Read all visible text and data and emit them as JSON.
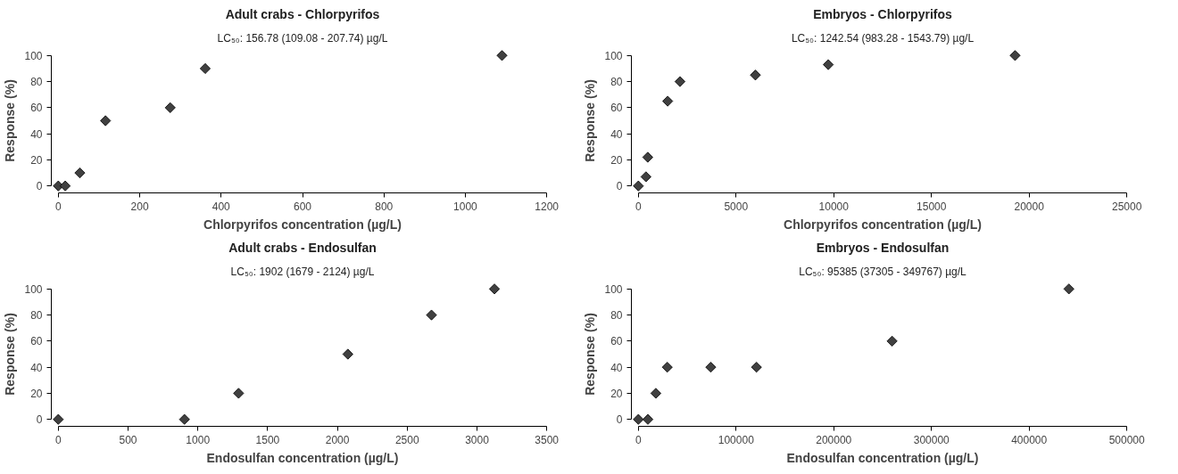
{
  "chart_data": [
    {
      "type": "scatter",
      "title": "Adult crabs - Chlorpyrifos",
      "subtitle": "LC₅₀: 156.78 (109.08 - 207.74) µg/L",
      "xlabel": "Chlorpyrifos concentration (µg/L)",
      "ylabel": "Response (%)",
      "marker": "diamond",
      "grid": false,
      "series": [
        {
          "color": "#404040",
          "x": [
            0,
            17,
            53,
            116,
            275,
            361,
            1090
          ],
          "values": [
            0,
            0,
            10,
            50,
            60,
            90,
            100
          ]
        }
      ],
      "xlim": [
        0,
        1200
      ],
      "xticks": [
        0,
        200,
        400,
        600,
        800,
        1000,
        1200
      ],
      "ylim": [
        0,
        100
      ],
      "yticks": [
        0,
        20,
        40,
        60,
        80,
        100
      ]
    },
    {
      "type": "scatter",
      "title": "Embryos - Chlorpyrifos",
      "subtitle": "LC₅₀: 1242.54 (983.28 - 1543.79) µg/L",
      "xlabel": "Chlorpyrifos concentration (µg/L)",
      "ylabel": "Response (%)",
      "marker": "diamond",
      "grid": false,
      "series": [
        {
          "color": "#404040",
          "x": [
            0,
            390,
            480,
            1500,
            2130,
            5990,
            9720,
            19280
          ],
          "values": [
            0,
            7,
            22,
            65,
            80,
            85,
            93,
            100
          ]
        }
      ],
      "xlim": [
        0,
        25000
      ],
      "xticks": [
        0,
        5000,
        10000,
        15000,
        20000,
        25000
      ],
      "ylim": [
        0,
        100
      ],
      "yticks": [
        0,
        20,
        40,
        60,
        80,
        100
      ]
    },
    {
      "type": "scatter",
      "title": "Adult crabs - Endosulfan",
      "subtitle": "LC₅₀: 1902 (1679 - 2124) µg/L",
      "xlabel": "Endosulfan concentration (µg/L)",
      "ylabel": "Response (%)",
      "marker": "diamond",
      "grid": false,
      "series": [
        {
          "color": "#404040",
          "x": [
            0,
            904,
            1292,
            2075,
            2674,
            3125
          ],
          "values": [
            0,
            0,
            20,
            50,
            80,
            100
          ]
        }
      ],
      "xlim": [
        0,
        3500
      ],
      "xticks": [
        0,
        500,
        1000,
        1500,
        2000,
        2500,
        3000,
        3500
      ],
      "ylim": [
        0,
        100
      ],
      "yticks": [
        0,
        20,
        40,
        60,
        80,
        100
      ]
    },
    {
      "type": "scatter",
      "title": "Embryos - Endosulfan",
      "subtitle": "LC₅₀: 95385 (37305 - 349767) µg/L",
      "xlabel": "Endosulfan concentration (µg/L)",
      "ylabel": "Response (%)",
      "marker": "diamond",
      "grid": false,
      "series": [
        {
          "color": "#404040",
          "x": [
            0,
            9750,
            17900,
            29600,
            74100,
            120900,
            259700,
            440700
          ],
          "values": [
            0,
            0,
            20,
            40,
            40,
            40,
            60,
            100
          ]
        }
      ],
      "xlim": [
        0,
        500000
      ],
      "xticks": [
        0,
        100000,
        200000,
        300000,
        400000,
        500000
      ],
      "ylim": [
        0,
        100
      ],
      "yticks": [
        0,
        20,
        40,
        60,
        80,
        100
      ]
    }
  ]
}
